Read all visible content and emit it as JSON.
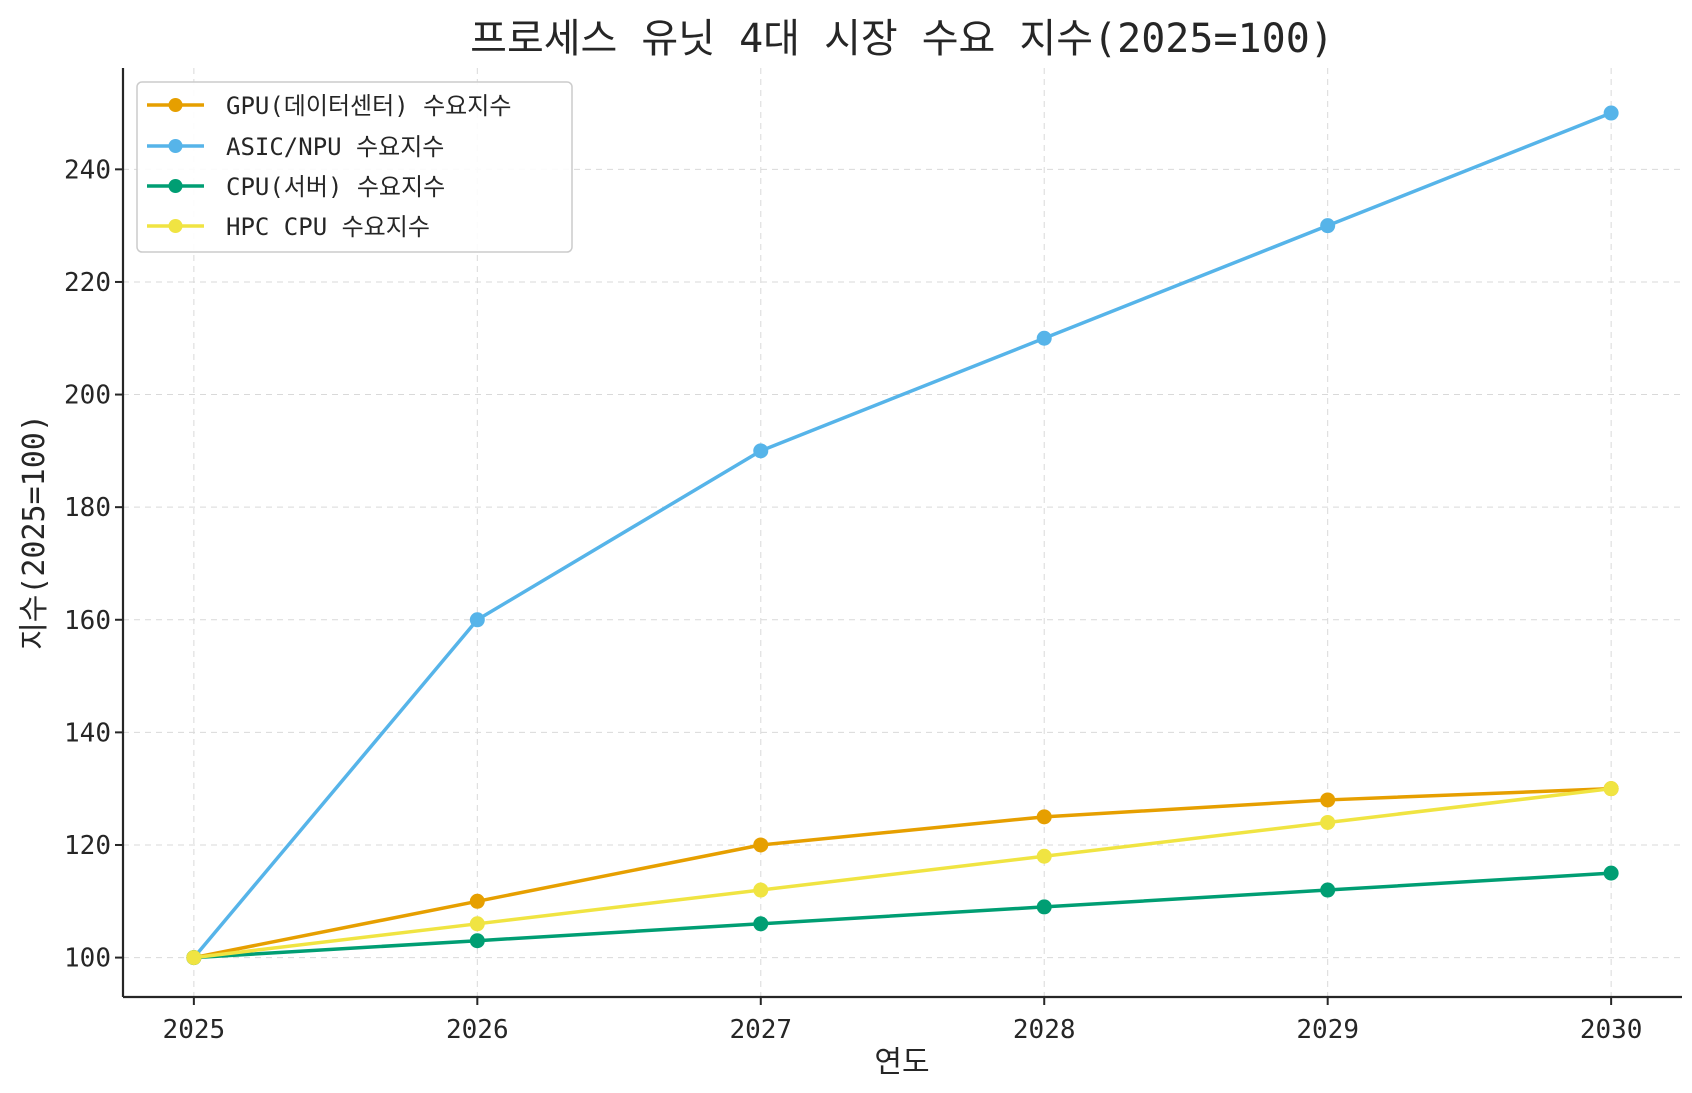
{
  "chart_data": {
    "type": "line",
    "title": "프로세스 유닛 4대 시장 수요 지수(2025=100)",
    "xlabel": "연도",
    "ylabel": "지수(2025=100)",
    "x": [
      "2025",
      "2026",
      "2027",
      "2028",
      "2029",
      "2030"
    ],
    "xlim": [
      2024.75,
      2030.25
    ],
    "ylim": [
      93,
      258
    ],
    "yticks": [
      100,
      120,
      140,
      160,
      180,
      200,
      220,
      240
    ],
    "grid": true,
    "legend_position": "top-left",
    "series": [
      {
        "name": "GPU(데이터센터) 수요지수",
        "color": "#E69F00",
        "values": [
          100,
          110,
          120,
          125,
          128,
          130
        ]
      },
      {
        "name": "ASIC/NPU 수요지수",
        "color": "#56B4E9",
        "values": [
          100,
          160,
          190,
          210,
          230,
          250
        ]
      },
      {
        "name": "CPU(서버) 수요지수",
        "color": "#009E73",
        "values": [
          100,
          103,
          106,
          109,
          112,
          115
        ]
      },
      {
        "name": "HPC CPU 수요지수",
        "color": "#F0E442",
        "values": [
          100,
          106,
          112,
          118,
          124,
          130
        ]
      }
    ]
  }
}
